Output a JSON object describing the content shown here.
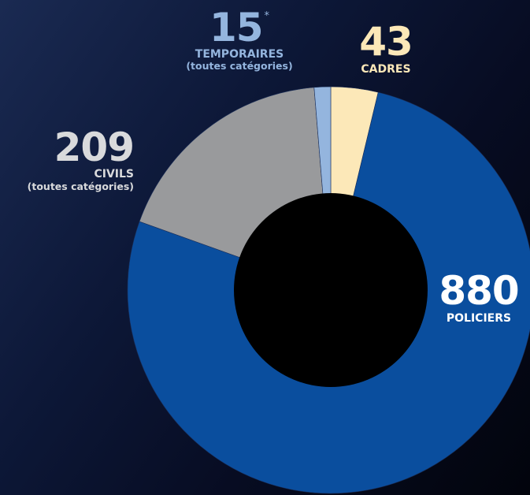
{
  "chart_data": {
    "type": "pie",
    "variant": "donut",
    "slices": [
      {
        "value": 43,
        "label": "CADRES",
        "sublabel": "",
        "color": "#fce8b8"
      },
      {
        "value": 880,
        "label": "POLICIERS",
        "sublabel": "",
        "color": "#0a4e9e"
      },
      {
        "value": 209,
        "label": "CIVILS",
        "sublabel": "(toutes catégories)",
        "color": "#999a9c"
      },
      {
        "value": 15,
        "label": "TEMPORAIRES",
        "sublabel": "(toutes catégories)",
        "color": "#94b5de",
        "note_mark": "*"
      }
    ],
    "label_colors": {
      "CADRES": "#fce8b8",
      "POLICIERS": "#ffffff",
      "CIVILS": "#d9dadc",
      "TEMPORAIRES": "#94b5de"
    },
    "hole_color": "#000000",
    "legend": "none"
  }
}
